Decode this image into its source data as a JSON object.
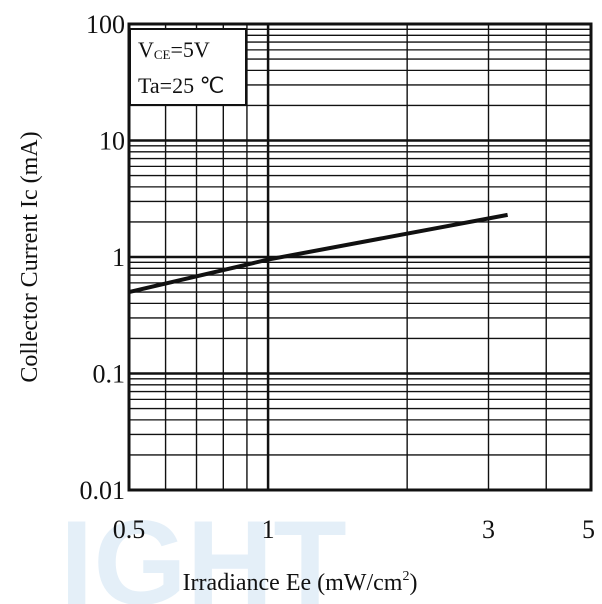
{
  "chart_data": {
    "type": "line",
    "title": "",
    "xlabel": "Irradiance Ee (mW/cm",
    "xlabel_sup": "2",
    "xlabel_end": ")",
    "ylabel": "Collector Current Ic (mA)",
    "x_scale": "log",
    "y_scale": "log",
    "xlim": [
      0.5,
      5
    ],
    "ylim": [
      0.01,
      100
    ],
    "x_tick_values": [
      0.5,
      1,
      3,
      5
    ],
    "x_tick_labels": [
      "0.5",
      "1",
      "3",
      "5"
    ],
    "y_tick_values": [
      100,
      10,
      1,
      0.1,
      0.01
    ],
    "y_tick_labels": [
      "100",
      "10",
      "1",
      "0.1",
      "0.01"
    ],
    "grid": true,
    "series": [
      {
        "x": [
          0.5,
          1,
          3.3
        ],
        "y": [
          0.5,
          0.95,
          2.3
        ],
        "color": "#111111"
      }
    ],
    "annotation": {
      "vce_main": "V",
      "vce_sub": "CE",
      "vce_value": "=5V",
      "ta_text": "Ta=25 ℃"
    },
    "legend_position": "top-left"
  },
  "watermark": "IGHT"
}
